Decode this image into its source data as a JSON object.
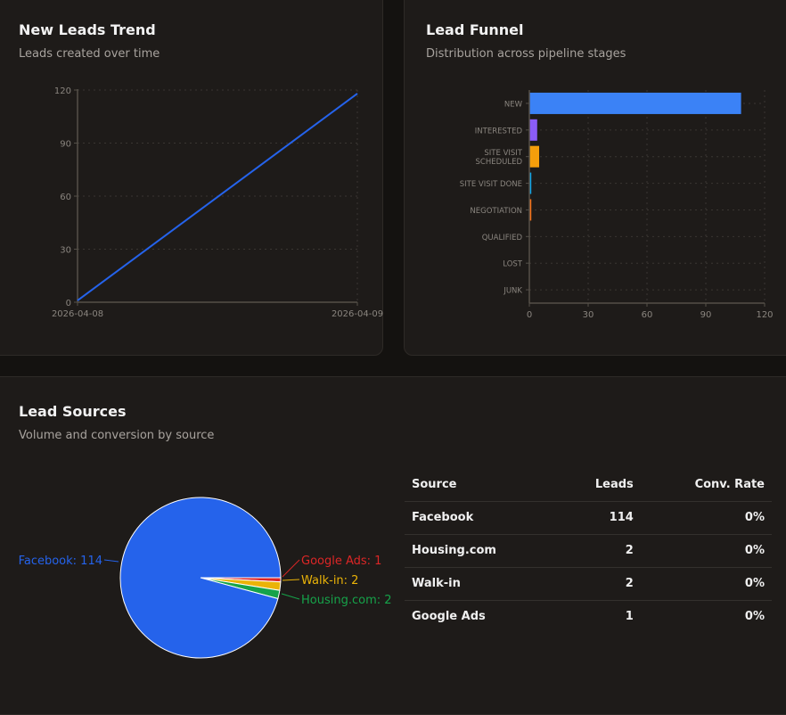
{
  "trend": {
    "title": "New Leads Trend",
    "subtitle": "Leads created over time"
  },
  "funnel": {
    "title": "Lead Funnel",
    "subtitle": "Distribution across pipeline stages"
  },
  "sources": {
    "title": "Lead Sources",
    "subtitle": "Volume and conversion by source",
    "table": {
      "headers": [
        "Source",
        "Leads",
        "Conv. Rate"
      ],
      "rows": [
        [
          "Facebook",
          "114",
          "0%"
        ],
        [
          "Housing.com",
          "2",
          "0%"
        ],
        [
          "Walk-in",
          "2",
          "0%"
        ],
        [
          "Google Ads",
          "1",
          "0%"
        ]
      ]
    }
  },
  "chart_data": [
    {
      "type": "line",
      "x": [
        "2026-04-08",
        "2026-04-09"
      ],
      "values": [
        1,
        118
      ],
      "ylim": [
        0,
        120
      ],
      "yticks": [
        0,
        30,
        60,
        90,
        120
      ],
      "grid": true,
      "color": "#2563eb"
    },
    {
      "type": "bar",
      "orientation": "horizontal",
      "categories": [
        "NEW",
        "INTERESTED",
        "SITE VISIT SCHEDULED",
        "SITE VISIT DONE",
        "NEGOTIATION",
        "QUALIFIED",
        "LOST",
        "JUNK"
      ],
      "values": [
        108,
        4,
        5,
        1,
        1,
        0,
        0,
        0
      ],
      "colors": [
        "#3b82f6",
        "#8b5cf6",
        "#f59e0b",
        "#0ea5e9",
        "#f97316",
        "#22c55e",
        "#ef4444",
        "#6b7280"
      ],
      "xlim": [
        0,
        120
      ],
      "xticks": [
        0,
        30,
        60,
        90,
        120
      ],
      "grid": true
    },
    {
      "type": "pie",
      "categories": [
        "Google Ads",
        "Walk-in",
        "Housing.com",
        "Facebook"
      ],
      "values": [
        1,
        2,
        2,
        114
      ],
      "colors": [
        "#dc2626",
        "#eab308",
        "#16a34a",
        "#2563eb"
      ],
      "labels": [
        "Google Ads: 1",
        "Walk-in: 2",
        "Housing.com: 2",
        "Facebook: 114"
      ]
    }
  ]
}
